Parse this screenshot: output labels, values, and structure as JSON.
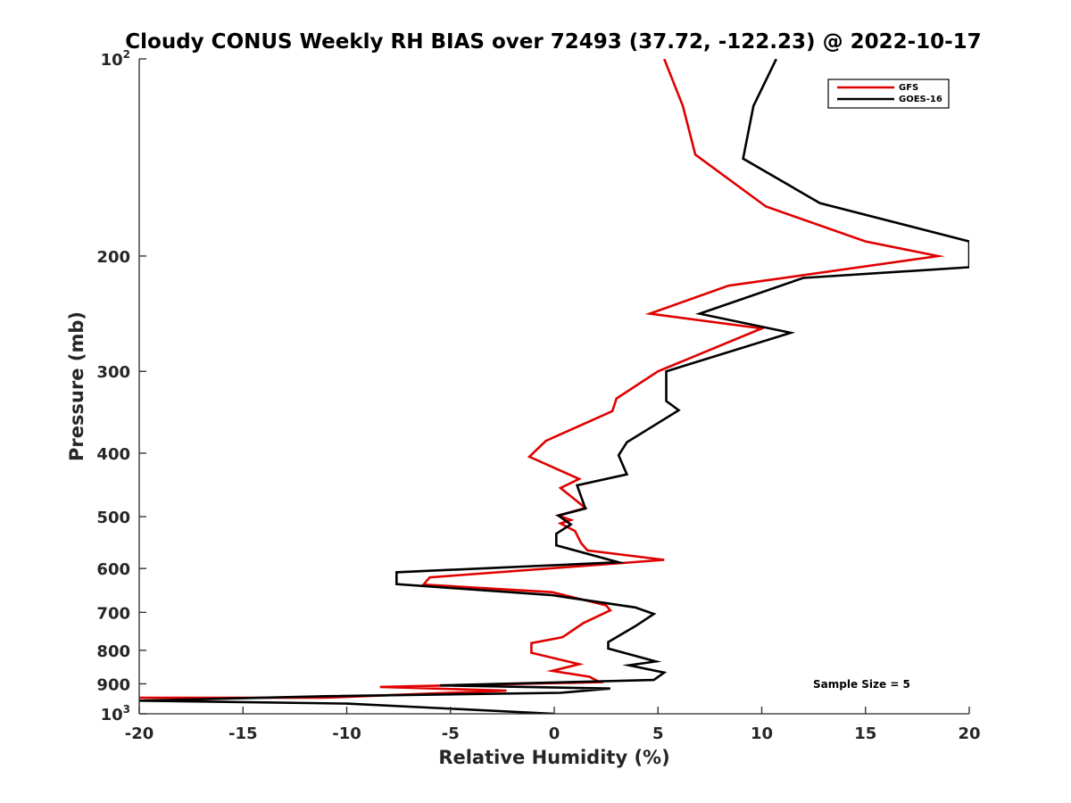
{
  "chart_data": {
    "type": "line",
    "title": "Cloudy CONUS Weekly RH BIAS over 72493 (37.72, -122.23) @ 2022-10-17",
    "xlabel": "Relative Humidity (%)",
    "ylabel": "Pressure (mb)",
    "xlim": [
      -20,
      20
    ],
    "ylim": [
      100,
      1000
    ],
    "y_scale": "log",
    "y_reversed": true,
    "grid": false,
    "legend_position": "top-right",
    "annotation": "Sample Size = 5",
    "x_ticks": [
      "-20",
      "-15",
      "-10",
      "-5",
      "0",
      "5",
      "10",
      "15",
      "20"
    ],
    "y_ticks": [
      {
        "value": 100,
        "base": "10",
        "exp": "2"
      },
      {
        "value": 200,
        "label": "200"
      },
      {
        "value": 300,
        "label": "300"
      },
      {
        "value": 400,
        "label": "400"
      },
      {
        "value": 500,
        "label": "500"
      },
      {
        "value": 600,
        "label": "600"
      },
      {
        "value": 700,
        "label": "700"
      },
      {
        "value": 800,
        "label": "800"
      },
      {
        "value": 900,
        "label": "900"
      },
      {
        "value": 1000,
        "base": "10",
        "exp": "3"
      }
    ],
    "series": [
      {
        "name": "GFS",
        "color": "#e00000",
        "points": [
          [
            5.3,
            100
          ],
          [
            6.2,
            118
          ],
          [
            6.8,
            140
          ],
          [
            10.2,
            168
          ],
          [
            15.0,
            190
          ],
          [
            18.5,
            200
          ],
          [
            8.4,
            222
          ],
          [
            4.6,
            245
          ],
          [
            10.0,
            258
          ],
          [
            5.0,
            300
          ],
          [
            3.0,
            330
          ],
          [
            2.8,
            345
          ],
          [
            -0.4,
            383
          ],
          [
            -1.2,
            405
          ],
          [
            1.2,
            438
          ],
          [
            0.3,
            452
          ],
          [
            1.5,
            485
          ],
          [
            0.2,
            498
          ],
          [
            0.8,
            506
          ],
          [
            0.3,
            512
          ],
          [
            1.0,
            526
          ],
          [
            1.3,
            549
          ],
          [
            1.6,
            563
          ],
          [
            5.3,
            582
          ],
          [
            -6.0,
            619
          ],
          [
            -6.3,
            635
          ],
          [
            -0.1,
            652
          ],
          [
            2.5,
            683
          ],
          [
            2.7,
            695
          ],
          [
            1.4,
            727
          ],
          [
            0.4,
            764
          ],
          [
            -1.1,
            780
          ],
          [
            -1.1,
            807
          ],
          [
            1.2,
            840
          ],
          [
            -0.1,
            860
          ],
          [
            1.7,
            878
          ],
          [
            2.2,
            895
          ],
          [
            -8.4,
            910
          ],
          [
            -2.3,
            922
          ],
          [
            -11.1,
            945
          ],
          [
            -20,
            945
          ]
        ]
      },
      {
        "name": "GOES-16",
        "color": "#000000",
        "points": [
          [
            10.7,
            100
          ],
          [
            9.6,
            118
          ],
          [
            9.1,
            142
          ],
          [
            12.8,
            166
          ],
          [
            20,
            190
          ],
          [
            20,
            208
          ],
          [
            12.0,
            216
          ],
          [
            7.0,
            245
          ],
          [
            11.4,
            262
          ],
          [
            5.4,
            300
          ],
          [
            5.4,
            333
          ],
          [
            6.0,
            344
          ],
          [
            3.5,
            385
          ],
          [
            3.1,
            403
          ],
          [
            3.5,
            431
          ],
          [
            1.1,
            448
          ],
          [
            1.5,
            486
          ],
          [
            0.2,
            498
          ],
          [
            0.8,
            514
          ],
          [
            0.1,
            531
          ],
          [
            0.1,
            553
          ],
          [
            3.1,
            587
          ],
          [
            -7.6,
            608
          ],
          [
            -7.6,
            634
          ],
          [
            -0.1,
            659
          ],
          [
            3.9,
            688
          ],
          [
            4.8,
            704
          ],
          [
            3.9,
            735
          ],
          [
            2.6,
            777
          ],
          [
            2.6,
            795
          ],
          [
            4.9,
            832
          ],
          [
            3.6,
            843
          ],
          [
            5.3,
            865
          ],
          [
            4.8,
            888
          ],
          [
            -5.5,
            905
          ],
          [
            2.7,
            915
          ],
          [
            0.3,
            929
          ],
          [
            -11.0,
            940
          ],
          [
            -20,
            955
          ],
          [
            -10.0,
            965
          ],
          [
            0.0,
            1000
          ]
        ]
      }
    ]
  }
}
